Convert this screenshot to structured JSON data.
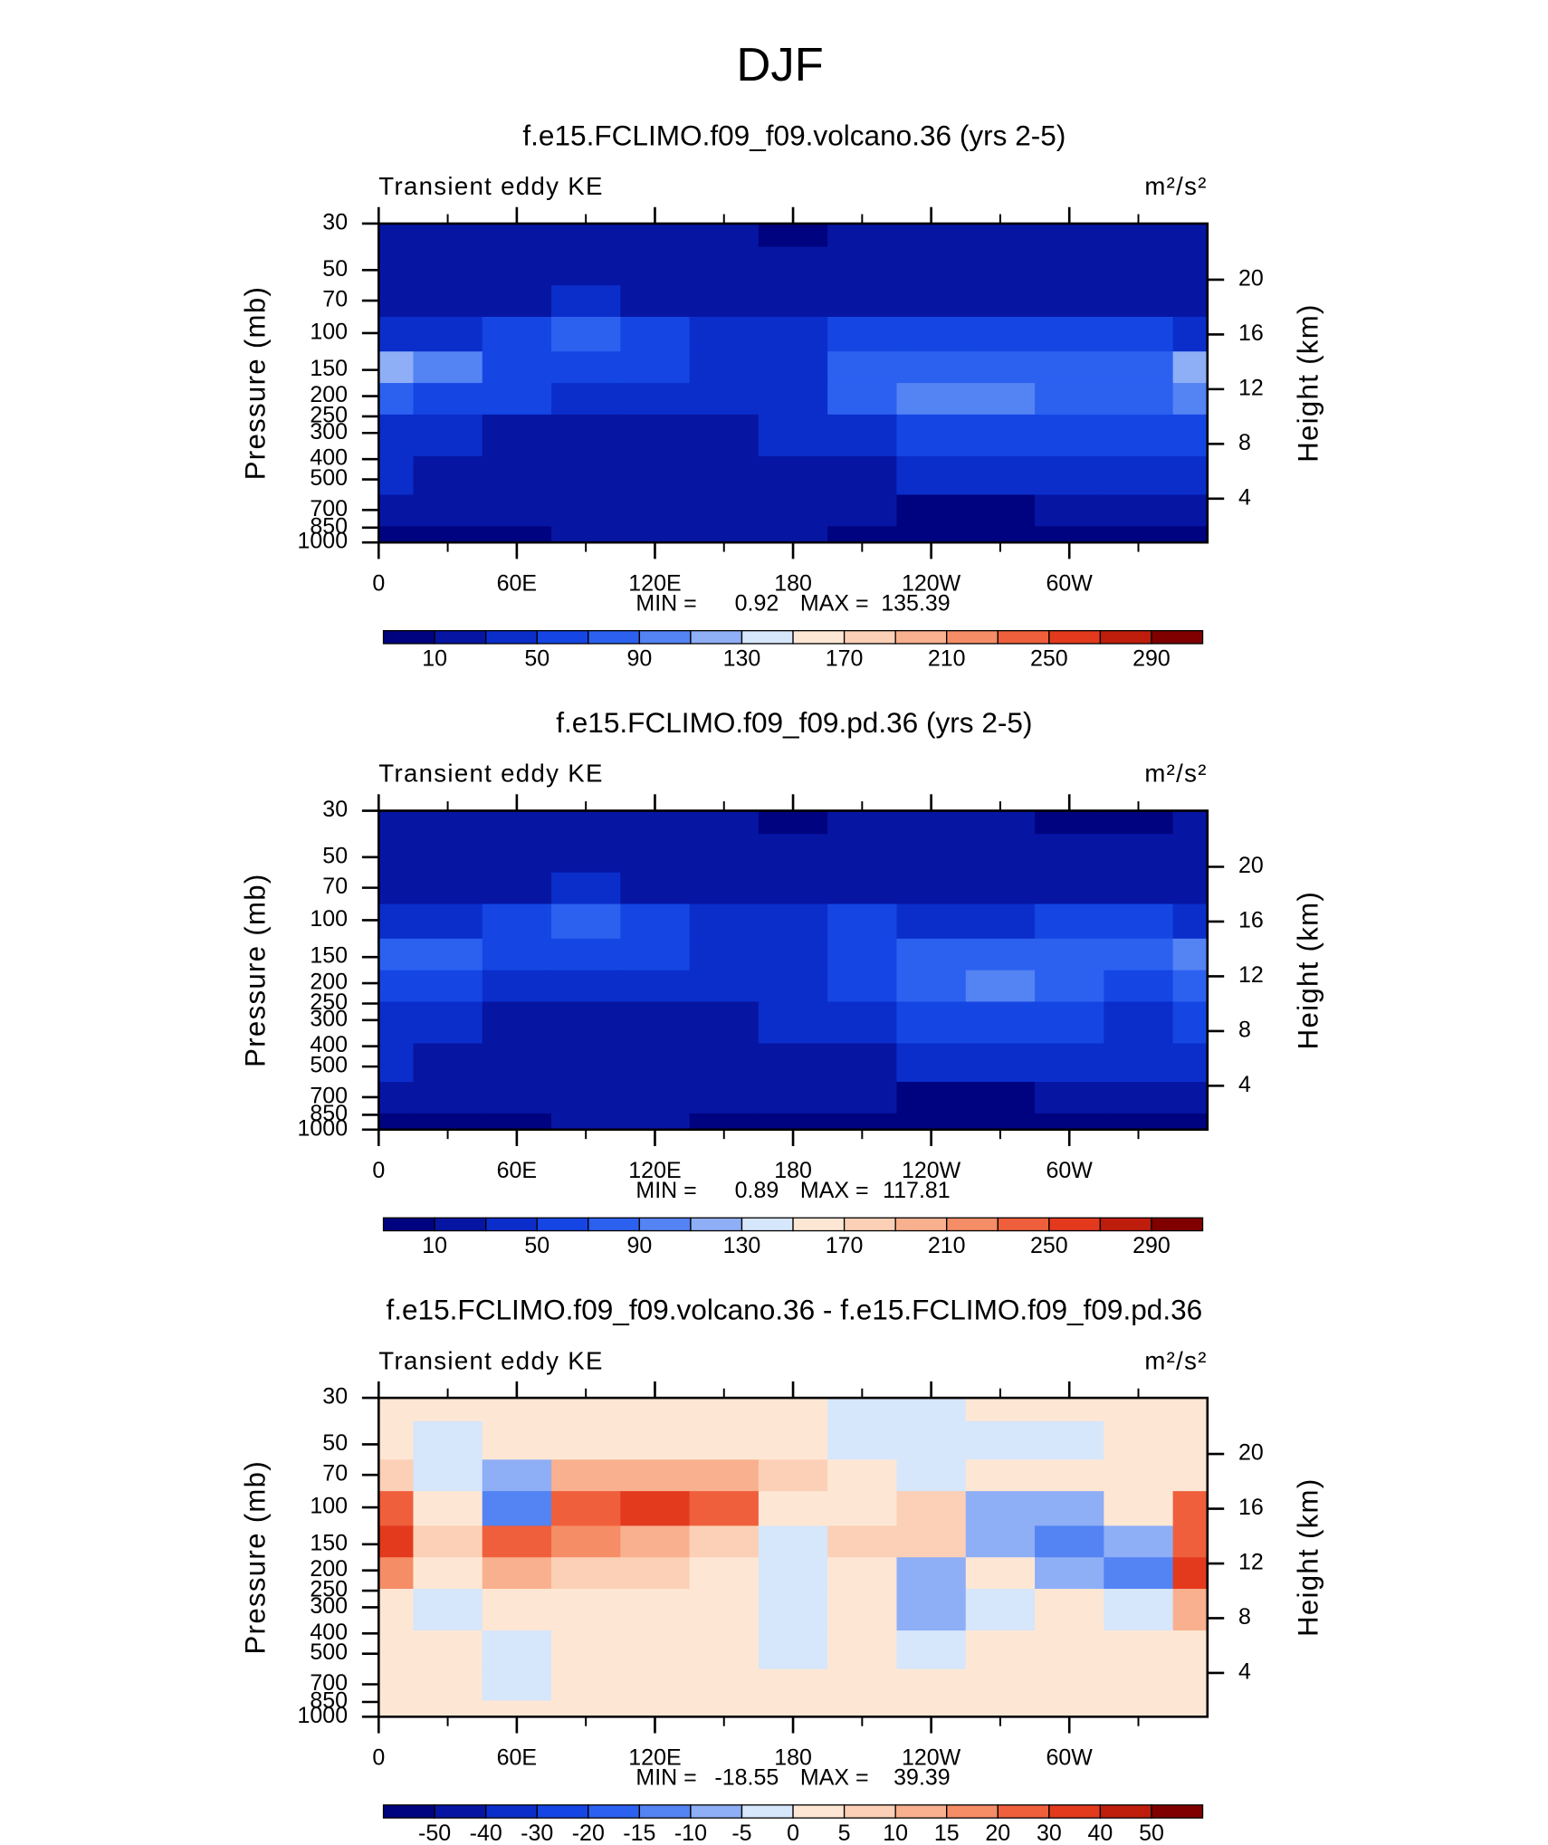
{
  "title": "DJF",
  "chart_data": [
    {
      "type": "contour",
      "title": "f.e15.FCLIMO.f09_f09.volcano.36 (yrs 2-5)",
      "left_label": "Transient eddy KE",
      "right_label": "m²/s²",
      "ylabel": "Pressure (mb)",
      "y2label": "Height (km)",
      "log_y": true,
      "xlim": [
        0,
        360
      ],
      "ylim": [
        1000,
        30
      ],
      "y2lim": [
        0.8,
        24.1
      ],
      "xticks": [
        0,
        {
          "value": 60,
          "label": "60E"
        },
        {
          "value": 120,
          "label": "120E"
        },
        180,
        {
          "value": 240,
          "label": "120W"
        },
        {
          "value": 300,
          "label": "60W"
        }
      ],
      "xminorticks": [
        30,
        90,
        150,
        210,
        270,
        330
      ],
      "yticks": [
        30,
        50,
        70,
        100,
        150,
        200,
        250,
        300,
        400,
        500,
        700,
        850,
        1000
      ],
      "y2ticks": [
        4,
        8,
        12,
        16,
        20
      ],
      "min_label": "MIN =",
      "min": 0.92,
      "max_label": "MAX =",
      "max": 135.39,
      "levels": [
        10,
        30,
        50,
        70,
        90,
        110,
        130,
        150,
        170,
        190,
        210,
        230,
        250,
        270,
        290
      ],
      "level_labels_every": 2,
      "colors": [
        "#00037f",
        "#0616a3",
        "#0b2ecb",
        "#1546e4",
        "#2c61f0",
        "#5483f3",
        "#8eaef6",
        "#d6e6fb",
        "#fde7d4",
        "#fcd0b6",
        "#f9b08f",
        "#f58d66",
        "#ef5f3c",
        "#e33a1e",
        "#bf1d0c",
        "#800000"
      ],
      "field": {
        "x": [
          0,
          30,
          60,
          90,
          120,
          150,
          180,
          210,
          240,
          270,
          300,
          330,
          360
        ],
        "y": [
          30,
          50,
          70,
          100,
          150,
          200,
          300,
          500,
          700,
          1000
        ],
        "values": [
          [
            20,
            20,
            20,
            20,
            20,
            20,
            8,
            20,
            20,
            20,
            20,
            20,
            20
          ],
          [
            20,
            22,
            22,
            22,
            22,
            22,
            20,
            20,
            22,
            22,
            22,
            22,
            20
          ],
          [
            25,
            25,
            28,
            32,
            28,
            25,
            25,
            25,
            25,
            25,
            25,
            28,
            28
          ],
          [
            40,
            45,
            55,
            80,
            50,
            40,
            35,
            55,
            50,
            50,
            55,
            55,
            45
          ],
          [
            115,
            90,
            65,
            55,
            50,
            45,
            45,
            75,
            80,
            85,
            70,
            85,
            115
          ],
          [
            75,
            55,
            50,
            45,
            40,
            38,
            40,
            70,
            95,
            95,
            75,
            70,
            90
          ],
          [
            45,
            35,
            25,
            25,
            25,
            25,
            30,
            45,
            60,
            60,
            55,
            50,
            55
          ],
          [
            30,
            22,
            18,
            15,
            15,
            15,
            20,
            25,
            32,
            35,
            35,
            35,
            35
          ],
          [
            15,
            12,
            12,
            12,
            12,
            12,
            15,
            12,
            8,
            8,
            12,
            15,
            15
          ],
          [
            5,
            5,
            8,
            10,
            10,
            10,
            10,
            8,
            5,
            5,
            5,
            5,
            5
          ]
        ]
      }
    },
    {
      "type": "contour",
      "title": "f.e15.FCLIMO.f09_f09.pd.36 (yrs 2-5)",
      "left_label": "Transient eddy KE",
      "right_label": "m²/s²",
      "ylabel": "Pressure (mb)",
      "y2label": "Height (km)",
      "log_y": true,
      "xlim": [
        0,
        360
      ],
      "ylim": [
        1000,
        30
      ],
      "y2lim": [
        0.8,
        24.1
      ],
      "xticks": [
        0,
        {
          "value": 60,
          "label": "60E"
        },
        {
          "value": 120,
          "label": "120E"
        },
        180,
        {
          "value": 240,
          "label": "120W"
        },
        {
          "value": 300,
          "label": "60W"
        }
      ],
      "xminorticks": [
        30,
        90,
        150,
        210,
        270,
        330
      ],
      "yticks": [
        30,
        50,
        70,
        100,
        150,
        200,
        250,
        300,
        400,
        500,
        700,
        850,
        1000
      ],
      "y2ticks": [
        4,
        8,
        12,
        16,
        20
      ],
      "min_label": "MIN =",
      "min": 0.89,
      "max_label": "MAX =",
      "max": 117.81,
      "levels": [
        10,
        30,
        50,
        70,
        90,
        110,
        130,
        150,
        170,
        190,
        210,
        230,
        250,
        270,
        290
      ],
      "level_labels_every": 2,
      "colors": [
        "#00037f",
        "#0616a3",
        "#0b2ecb",
        "#1546e4",
        "#2c61f0",
        "#5483f3",
        "#8eaef6",
        "#d6e6fb",
        "#fde7d4",
        "#fcd0b6",
        "#f9b08f",
        "#f58d66",
        "#ef5f3c",
        "#e33a1e",
        "#bf1d0c",
        "#800000"
      ],
      "field": {
        "x": [
          0,
          30,
          60,
          90,
          120,
          150,
          180,
          210,
          240,
          270,
          300,
          330,
          360
        ],
        "y": [
          30,
          50,
          70,
          100,
          150,
          200,
          300,
          500,
          700,
          1000
        ],
        "values": [
          [
            20,
            20,
            20,
            20,
            20,
            20,
            8,
            20,
            20,
            20,
            8,
            8,
            20
          ],
          [
            20,
            22,
            22,
            22,
            22,
            22,
            15,
            20,
            20,
            20,
            15,
            15,
            20
          ],
          [
            25,
            25,
            28,
            30,
            28,
            25,
            25,
            25,
            25,
            25,
            25,
            25,
            25
          ],
          [
            40,
            45,
            50,
            70,
            50,
            40,
            35,
            50,
            45,
            45,
            50,
            50,
            45
          ],
          [
            85,
            75,
            55,
            50,
            50,
            45,
            45,
            60,
            70,
            85,
            75,
            80,
            95
          ],
          [
            65,
            50,
            45,
            45,
            40,
            38,
            40,
            65,
            80,
            95,
            70,
            65,
            80
          ],
          [
            40,
            35,
            25,
            25,
            25,
            25,
            30,
            45,
            55,
            55,
            50,
            45,
            50
          ],
          [
            30,
            22,
            18,
            15,
            15,
            15,
            20,
            25,
            30,
            32,
            32,
            32,
            32
          ],
          [
            15,
            12,
            12,
            12,
            12,
            10,
            12,
            10,
            8,
            8,
            10,
            12,
            12
          ],
          [
            5,
            5,
            8,
            10,
            10,
            8,
            8,
            5,
            5,
            5,
            5,
            5,
            5
          ]
        ]
      }
    },
    {
      "type": "contour",
      "title": "f.e15.FCLIMO.f09_f09.volcano.36 - f.e15.FCLIMO.f09_f09.pd.36",
      "left_label": "Transient eddy KE",
      "right_label": "m²/s²",
      "ylabel": "Pressure (mb)",
      "y2label": "Height (km)",
      "log_y": true,
      "xlim": [
        0,
        360
      ],
      "ylim": [
        1000,
        30
      ],
      "y2lim": [
        0.8,
        24.1
      ],
      "xticks": [
        0,
        {
          "value": 60,
          "label": "60E"
        },
        {
          "value": 120,
          "label": "120E"
        },
        180,
        {
          "value": 240,
          "label": "120W"
        },
        {
          "value": 300,
          "label": "60W"
        }
      ],
      "xminorticks": [
        30,
        90,
        150,
        210,
        270,
        330
      ],
      "yticks": [
        30,
        50,
        70,
        100,
        150,
        200,
        250,
        300,
        400,
        500,
        700,
        850,
        1000
      ],
      "y2ticks": [
        4,
        8,
        12,
        16,
        20
      ],
      "min_label": "MIN =",
      "min": -18.55,
      "max_label": "MAX =",
      "max": 39.39,
      "levels": [
        -50,
        -40,
        -30,
        -20,
        -15,
        -10,
        -5,
        0,
        5,
        10,
        15,
        20,
        30,
        40,
        50
      ],
      "level_labels_every": 1,
      "colors": [
        "#00037f",
        "#0616a3",
        "#0b2ecb",
        "#1546e4",
        "#2c61f0",
        "#5483f3",
        "#8eaef6",
        "#d6e6fb",
        "#fde7d4",
        "#fcd0b6",
        "#f9b08f",
        "#f58d66",
        "#ef5f3c",
        "#e33a1e",
        "#bf1d0c",
        "#800000"
      ],
      "field": {
        "x": [
          0,
          30,
          60,
          90,
          120,
          150,
          180,
          210,
          240,
          270,
          300,
          330,
          360
        ],
        "y": [
          30,
          50,
          70,
          100,
          150,
          200,
          300,
          500,
          700,
          1000
        ],
        "values": [
          [
            2,
            2,
            2,
            2,
            2,
            2,
            2,
            -2,
            -2,
            2,
            2,
            2,
            2
          ],
          [
            2,
            -2,
            2,
            2,
            2,
            2,
            2,
            -2,
            -2,
            -2,
            -2,
            2,
            2
          ],
          [
            7,
            -2,
            -6,
            12,
            12,
            12,
            7,
            2,
            -2,
            2,
            2,
            2,
            2
          ],
          [
            22,
            2,
            -15,
            25,
            35,
            25,
            2,
            2,
            7,
            -8,
            -8,
            2,
            22
          ],
          [
            32,
            7,
            22,
            17,
            12,
            7,
            -2,
            7,
            7,
            -8,
            -15,
            -8,
            27
          ],
          [
            17,
            2,
            12,
            7,
            7,
            2,
            -2,
            2,
            -6,
            2,
            -10,
            -15,
            32
          ],
          [
            2,
            -2,
            2,
            2,
            2,
            2,
            -2,
            2,
            -6,
            -2,
            2,
            -2,
            12
          ],
          [
            2,
            2,
            -2,
            2,
            2,
            2,
            -2,
            2,
            -2,
            2,
            2,
            2,
            2
          ],
          [
            2,
            2,
            -2,
            2,
            2,
            2,
            2,
            2,
            2,
            2,
            2,
            2,
            2
          ],
          [
            2,
            2,
            2,
            2,
            2,
            2,
            2,
            2,
            2,
            2,
            2,
            2,
            2
          ]
        ]
      }
    }
  ]
}
